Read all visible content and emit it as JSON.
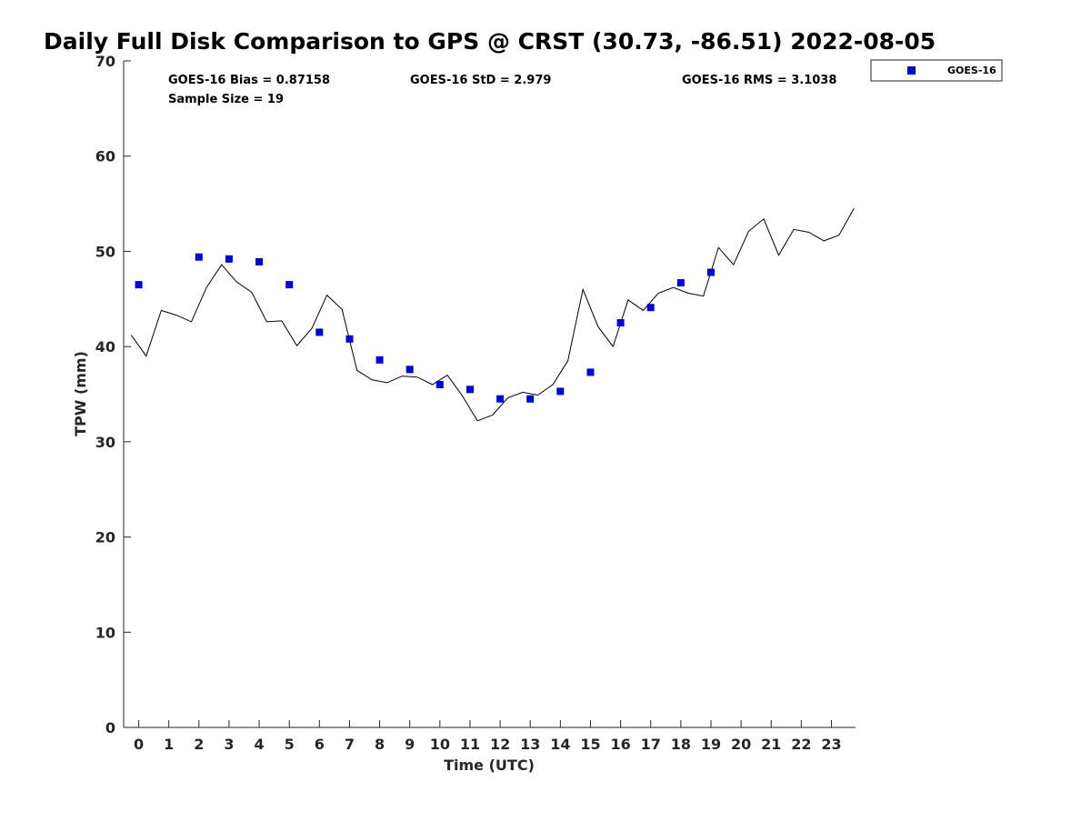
{
  "chart_data": {
    "type": "scatter",
    "title": "Daily Full Disk Comparison to GPS @ CRST (30.73, -86.51) 2022-08-05",
    "xlabel": "Time (UTC)",
    "ylabel": "TPW (mm)",
    "xlim": [
      -0.5,
      23.8
    ],
    "ylim": [
      0,
      70
    ],
    "xticks": [
      0,
      1,
      2,
      3,
      4,
      5,
      6,
      7,
      8,
      9,
      10,
      11,
      12,
      13,
      14,
      15,
      16,
      17,
      18,
      19,
      20,
      21,
      22,
      23
    ],
    "yticks": [
      0,
      10,
      20,
      30,
      40,
      50,
      60,
      70
    ],
    "legend_position": "outside-top-right",
    "stats": {
      "bias": "GOES-16 Bias = 0.87158",
      "sample_size": "Sample Size = 19",
      "std": "GOES-16 StD = 2.979",
      "rms": "GOES-16 RMS = 3.1038"
    },
    "series": [
      {
        "name": "GOES-16",
        "kind": "scatter",
        "color": "#0000dd",
        "x": [
          0,
          2,
          3,
          4,
          5,
          6,
          7,
          8,
          9,
          10,
          11,
          12,
          13,
          14,
          15,
          16,
          17,
          18,
          19
        ],
        "y": [
          46.5,
          49.4,
          49.2,
          48.9,
          46.5,
          41.5,
          40.8,
          38.6,
          37.6,
          36.0,
          35.5,
          34.5,
          34.5,
          35.3,
          37.3,
          42.5,
          44.1,
          46.7,
          47.8
        ]
      },
      {
        "name": "GPS",
        "kind": "line",
        "color": "#000000",
        "x": [
          -0.25,
          0.25,
          0.75,
          1.25,
          1.75,
          2.25,
          2.75,
          3.25,
          3.75,
          4.25,
          4.75,
          5.25,
          5.75,
          6.25,
          6.75,
          7.25,
          7.75,
          8.25,
          8.75,
          9.25,
          9.75,
          10.25,
          10.75,
          11.25,
          11.75,
          12.25,
          12.75,
          13.25,
          13.75,
          14.25,
          14.75,
          15.25,
          15.75,
          16.25,
          16.75,
          17.25,
          17.75,
          18.25,
          18.75,
          19.25,
          19.75,
          20.25,
          20.75,
          21.25,
          21.75,
          22.25,
          22.75,
          23.25,
          23.75
        ],
        "y": [
          41.2,
          39.0,
          43.8,
          43.3,
          42.6,
          46.2,
          48.6,
          46.8,
          45.7,
          42.6,
          42.7,
          40.1,
          41.9,
          45.4,
          43.9,
          37.5,
          36.5,
          36.2,
          36.9,
          36.8,
          36.0,
          37.0,
          34.8,
          32.2,
          32.8,
          34.6,
          35.2,
          34.9,
          36.0,
          38.5,
          46.0,
          42.1,
          40.0,
          44.9,
          43.8,
          45.6,
          46.2,
          45.6,
          45.3,
          50.4,
          48.6,
          52.1,
          53.4,
          49.6,
          52.3,
          52.0,
          51.1,
          51.7,
          54.5
        ]
      }
    ]
  }
}
